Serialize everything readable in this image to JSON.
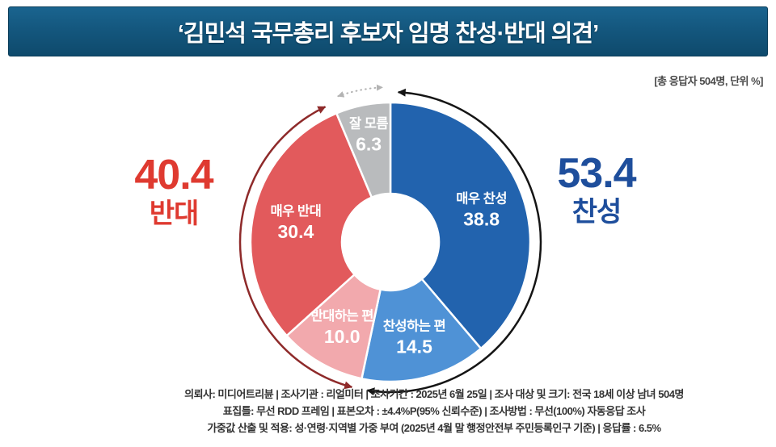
{
  "header": {
    "title": "‘김민석 국무총리 후보자 임명 찬성·반대 의견’"
  },
  "note": "[총 응답자 504명, 단위 %]",
  "summary": {
    "oppose": {
      "value": "40.4",
      "label": "반대"
    },
    "favor": {
      "value": "53.4",
      "label": "찬성"
    }
  },
  "chart_data": {
    "type": "pie",
    "subtype": "donut",
    "title": "김민석 국무총리 후보자 임명 찬성·반대 의견",
    "unit": "%",
    "start": "top-clockwise",
    "segments": [
      {
        "label": "매우 찬성",
        "value": 38.8,
        "color": "#2263ae",
        "group": "찬성"
      },
      {
        "label": "찬성하는 편",
        "value": 14.5,
        "color": "#4f92d6",
        "group": "찬성"
      },
      {
        "label": "반대하는 편",
        "value": 10.0,
        "color": "#f2a9ad",
        "group": "반대"
      },
      {
        "label": "매우 반대",
        "value": 30.4,
        "color": "#e25a5c",
        "group": "반대"
      },
      {
        "label": "잘 모름",
        "value": 6.3,
        "color": "#b9bbbd",
        "group": "잘 모름"
      }
    ],
    "group_totals": {
      "찬성": 53.4,
      "반대": 40.4,
      "잘 모름": 6.3
    },
    "group_arcs": [
      {
        "group": "찬성",
        "color": "#151515",
        "style": "solid"
      },
      {
        "group": "반대",
        "color": "#8e2a2a",
        "style": "solid"
      },
      {
        "group": "잘 모름",
        "color": "#b3b3b3",
        "style": "dashed"
      }
    ],
    "colors": {
      "favor_total": "#1e4e9c",
      "oppose_total": "#df3a30",
      "banner_bg": "#14577e"
    }
  },
  "footer": {
    "lines": [
      "의뢰사: 미디어트리뷴 | 조사기관 : 리얼미터 | 조사기간 : 2025년 6월 25일 | 조사 대상 및 크기: 전국 18세 이상 남녀 504명",
      "표집틀: 무선 RDD 프레임 | 표본오차 : ±4.4%P(95% 신뢰수준) | 조사방법 : 무선(100%) 자동응답 조사",
      "가중값 산출 및 적용: 성·연령·지역별 가중 부여 (2025년 4월 말 행정안전부 주민등록인구 기준) | 응답률 : 6.5%"
    ]
  }
}
